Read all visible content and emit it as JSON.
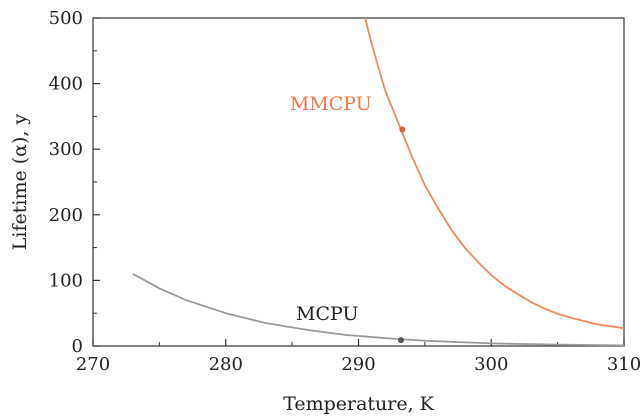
{
  "chart_data": {
    "type": "line",
    "xlabel": "Temperature, K",
    "ylabel": "Lifetime (α), y",
    "xlim": [
      270,
      310
    ],
    "ylim": [
      0,
      500
    ],
    "x_ticks": [
      270,
      280,
      290,
      300,
      310
    ],
    "y_ticks": [
      0,
      100,
      200,
      300,
      400,
      500
    ],
    "grid": false,
    "series": [
      {
        "name": "MMCPU",
        "color": "#f08a5d",
        "x": [
          290.5,
          291,
          292,
          293,
          294,
          295,
          296,
          297,
          298,
          299,
          300,
          301,
          302,
          303,
          304,
          305,
          306,
          307,
          308,
          309,
          310
        ],
        "y": [
          500,
          460,
          390,
          340,
          290,
          245,
          210,
          177,
          150,
          128,
          108,
          92,
          79,
          67,
          57,
          49,
          43,
          38,
          33,
          30,
          27
        ],
        "marker": {
          "x": 293.3,
          "y": 330
        }
      },
      {
        "name": "MCPU",
        "color": "#999999",
        "x": [
          273,
          275,
          277,
          280,
          283,
          286,
          289,
          292,
          295,
          300,
          305,
          310
        ],
        "y": [
          110,
          88,
          70,
          50,
          35,
          25,
          17,
          12,
          8,
          4,
          2,
          1
        ],
        "marker": {
          "x": 293.2,
          "y": 9
        }
      }
    ]
  }
}
